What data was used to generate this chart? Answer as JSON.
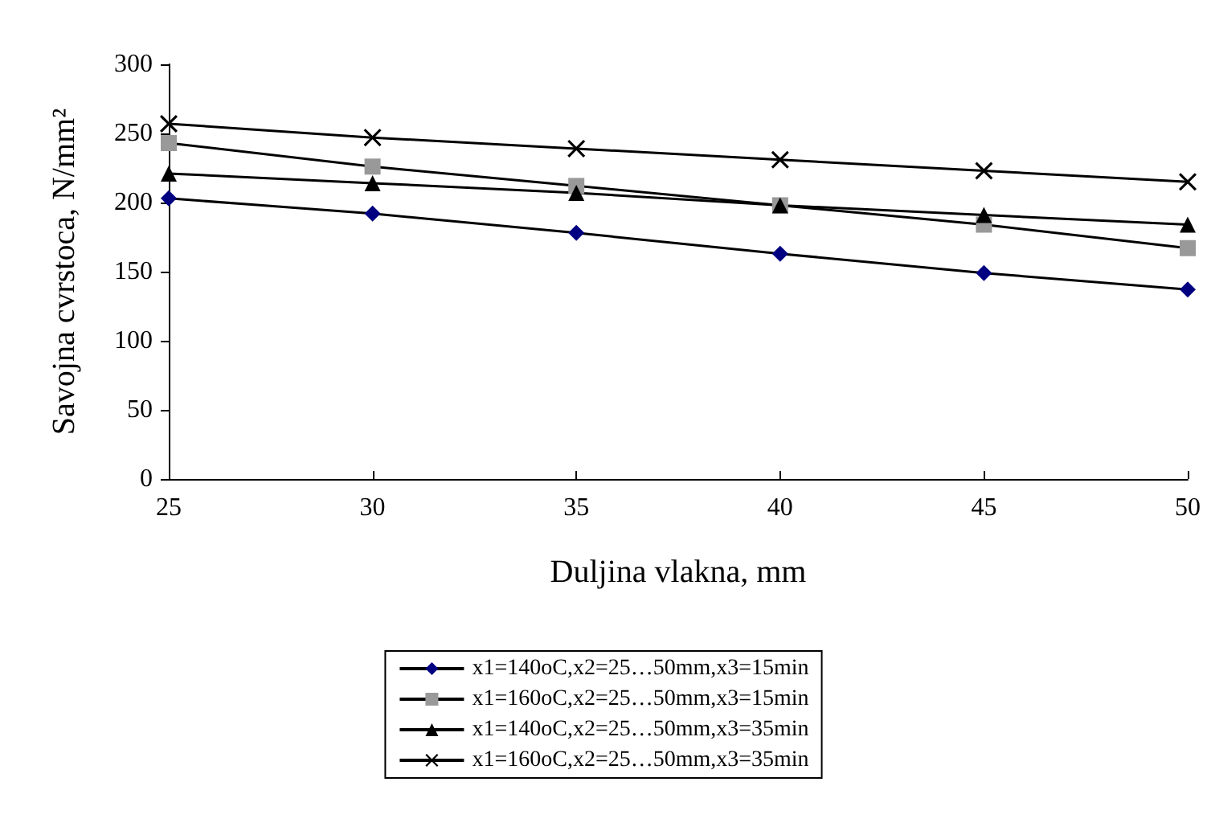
{
  "chart_data": {
    "type": "line",
    "xlabel": "Duljina vlakna, mm",
    "ylabel": "Savojna cvrstoca, N/mm²",
    "x": [
      25,
      30,
      35,
      40,
      45,
      50
    ],
    "xlim": [
      25,
      50
    ],
    "xticks": [
      25,
      30,
      35,
      40,
      45,
      50
    ],
    "ylim": [
      0,
      300
    ],
    "yticks": [
      0,
      50,
      100,
      150,
      200,
      250,
      300
    ],
    "grid": false,
    "legend": "bottom",
    "line_style": "solid",
    "series": [
      {
        "name": "x1=140oC,x2=25…50mm,x3=15min",
        "color": "#000080",
        "marker": "diamond",
        "values": [
          203,
          192,
          178,
          163,
          149,
          137
        ]
      },
      {
        "name": "x1=160oC,x2=25…50mm,x3=15min",
        "color": "#999999",
        "marker": "square",
        "values": [
          243,
          226,
          212,
          198,
          184,
          167
        ]
      },
      {
        "name": "x1=140oC,x2=25…50mm,x3=35min",
        "color": "#000000",
        "marker": "triangle",
        "values": [
          221,
          214,
          207,
          198,
          191,
          184
        ]
      },
      {
        "name": "x1=160oC,x2=25…50mm,x3=35min",
        "color": "#000000",
        "marker": "cross",
        "values": [
          257,
          247,
          239,
          231,
          223,
          215
        ]
      }
    ]
  }
}
